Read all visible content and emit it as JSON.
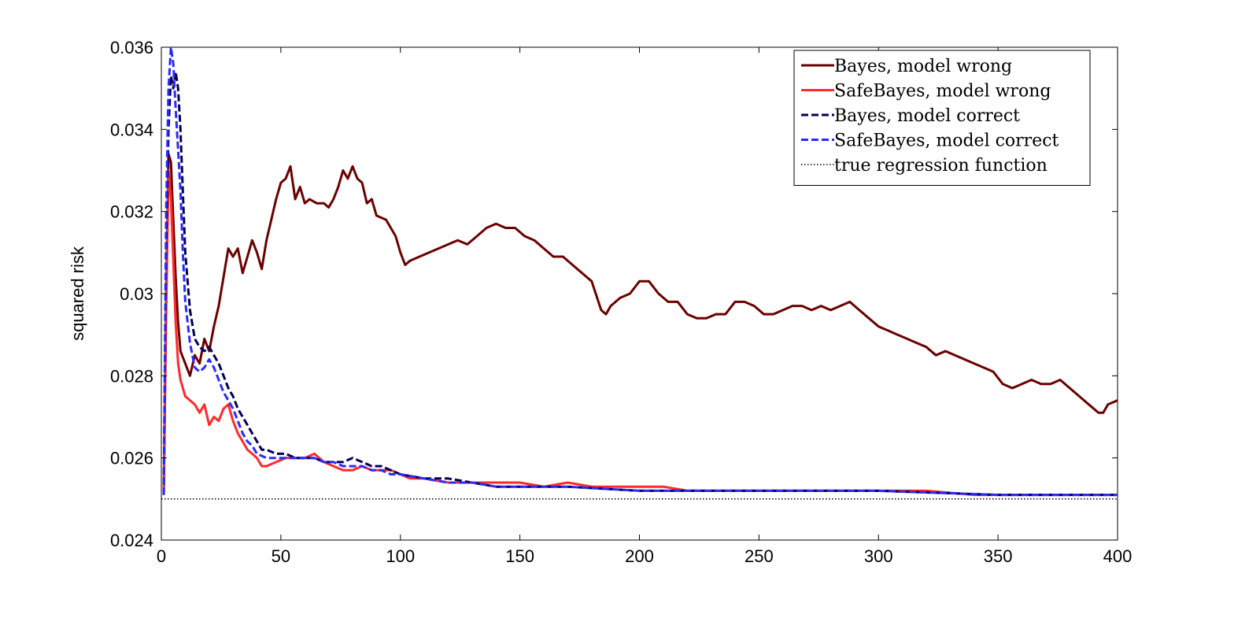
{
  "chart_data": {
    "type": "line",
    "title": "",
    "xlabel": "",
    "ylabel": "squared risk",
    "xlim": [
      0,
      400
    ],
    "ylim": [
      0.024,
      0.036
    ],
    "x_ticks": [
      0,
      50,
      100,
      150,
      200,
      250,
      300,
      350,
      400
    ],
    "x_tick_labels": [
      "0",
      "50",
      "100",
      "150",
      "200",
      "250",
      "300",
      "350",
      "400"
    ],
    "y_ticks": [
      0.024,
      0.026,
      0.028,
      0.03,
      0.032,
      0.034,
      0.036
    ],
    "y_tick_labels": [
      "0.024",
      "0.026",
      "0.028",
      "0.03",
      "0.032",
      "0.034",
      "0.036"
    ],
    "grid": false,
    "legend_position": "top-right",
    "series": [
      {
        "name": "Bayes, model wrong",
        "color": "#6b0000",
        "style": "solid",
        "points": [
          [
            1,
            0.0251
          ],
          [
            2,
            0.03
          ],
          [
            3,
            0.0334
          ],
          [
            4,
            0.0332
          ],
          [
            5,
            0.0318
          ],
          [
            6,
            0.0304
          ],
          [
            7,
            0.0293
          ],
          [
            8,
            0.0286
          ],
          [
            10,
            0.0283
          ],
          [
            12,
            0.028
          ],
          [
            14,
            0.0285
          ],
          [
            16,
            0.0283
          ],
          [
            18,
            0.0289
          ],
          [
            20,
            0.0286
          ],
          [
            22,
            0.0292
          ],
          [
            24,
            0.0297
          ],
          [
            26,
            0.0304
          ],
          [
            28,
            0.0311
          ],
          [
            30,
            0.0309
          ],
          [
            32,
            0.0311
          ],
          [
            34,
            0.0305
          ],
          [
            36,
            0.0309
          ],
          [
            38,
            0.0313
          ],
          [
            40,
            0.031
          ],
          [
            42,
            0.0306
          ],
          [
            44,
            0.0313
          ],
          [
            46,
            0.0318
          ],
          [
            48,
            0.0323
          ],
          [
            50,
            0.0327
          ],
          [
            52,
            0.0328
          ],
          [
            54,
            0.0331
          ],
          [
            56,
            0.0323
          ],
          [
            58,
            0.0326
          ],
          [
            60,
            0.0322
          ],
          [
            62,
            0.0323
          ],
          [
            65,
            0.0322
          ],
          [
            68,
            0.0322
          ],
          [
            70,
            0.0321
          ],
          [
            72,
            0.0323
          ],
          [
            74,
            0.0326
          ],
          [
            76,
            0.033
          ],
          [
            78,
            0.0328
          ],
          [
            80,
            0.0331
          ],
          [
            82,
            0.0328
          ],
          [
            84,
            0.0327
          ],
          [
            86,
            0.0322
          ],
          [
            88,
            0.0323
          ],
          [
            90,
            0.0319
          ],
          [
            94,
            0.0318
          ],
          [
            98,
            0.0314
          ],
          [
            100,
            0.031
          ],
          [
            102,
            0.0307
          ],
          [
            104,
            0.0308
          ],
          [
            108,
            0.0309
          ],
          [
            112,
            0.031
          ],
          [
            116,
            0.0311
          ],
          [
            120,
            0.0312
          ],
          [
            124,
            0.0313
          ],
          [
            128,
            0.0312
          ],
          [
            132,
            0.0314
          ],
          [
            136,
            0.0316
          ],
          [
            140,
            0.0317
          ],
          [
            144,
            0.0316
          ],
          [
            148,
            0.0316
          ],
          [
            152,
            0.0314
          ],
          [
            156,
            0.0313
          ],
          [
            160,
            0.0311
          ],
          [
            164,
            0.0309
          ],
          [
            168,
            0.0309
          ],
          [
            172,
            0.0307
          ],
          [
            176,
            0.0305
          ],
          [
            180,
            0.0303
          ],
          [
            184,
            0.0296
          ],
          [
            186,
            0.0295
          ],
          [
            188,
            0.0297
          ],
          [
            192,
            0.0299
          ],
          [
            196,
            0.03
          ],
          [
            200,
            0.0303
          ],
          [
            204,
            0.0303
          ],
          [
            208,
            0.03
          ],
          [
            212,
            0.0298
          ],
          [
            216,
            0.0298
          ],
          [
            220,
            0.0295
          ],
          [
            224,
            0.0294
          ],
          [
            228,
            0.0294
          ],
          [
            232,
            0.0295
          ],
          [
            236,
            0.0295
          ],
          [
            240,
            0.0298
          ],
          [
            244,
            0.0298
          ],
          [
            248,
            0.0297
          ],
          [
            252,
            0.0295
          ],
          [
            256,
            0.0295
          ],
          [
            260,
            0.0296
          ],
          [
            264,
            0.0297
          ],
          [
            268,
            0.0297
          ],
          [
            272,
            0.0296
          ],
          [
            276,
            0.0297
          ],
          [
            280,
            0.0296
          ],
          [
            284,
            0.0297
          ],
          [
            288,
            0.0298
          ],
          [
            292,
            0.0296
          ],
          [
            296,
            0.0294
          ],
          [
            300,
            0.0292
          ],
          [
            304,
            0.0291
          ],
          [
            308,
            0.029
          ],
          [
            312,
            0.0289
          ],
          [
            316,
            0.0288
          ],
          [
            320,
            0.0287
          ],
          [
            324,
            0.0285
          ],
          [
            328,
            0.0286
          ],
          [
            332,
            0.0285
          ],
          [
            336,
            0.0284
          ],
          [
            340,
            0.0283
          ],
          [
            344,
            0.0282
          ],
          [
            348,
            0.0281
          ],
          [
            352,
            0.0278
          ],
          [
            356,
            0.0277
          ],
          [
            360,
            0.0278
          ],
          [
            364,
            0.0279
          ],
          [
            368,
            0.0278
          ],
          [
            372,
            0.0278
          ],
          [
            376,
            0.0279
          ],
          [
            380,
            0.0277
          ],
          [
            384,
            0.0275
          ],
          [
            388,
            0.0273
          ],
          [
            392,
            0.0271
          ],
          [
            394,
            0.0271
          ],
          [
            396,
            0.0273
          ],
          [
            400,
            0.0274
          ]
        ]
      },
      {
        "name": "SafeBayes, model wrong",
        "color": "#ff2a2a",
        "style": "solid",
        "points": [
          [
            1,
            0.0251
          ],
          [
            2,
            0.0295
          ],
          [
            3,
            0.033
          ],
          [
            4,
            0.0323
          ],
          [
            5,
            0.0308
          ],
          [
            6,
            0.0293
          ],
          [
            7,
            0.0283
          ],
          [
            8,
            0.0279
          ],
          [
            10,
            0.0275
          ],
          [
            12,
            0.0274
          ],
          [
            14,
            0.0273
          ],
          [
            16,
            0.0271
          ],
          [
            18,
            0.0273
          ],
          [
            20,
            0.0268
          ],
          [
            22,
            0.027
          ],
          [
            24,
            0.0269
          ],
          [
            26,
            0.0272
          ],
          [
            28,
            0.0273
          ],
          [
            30,
            0.0269
          ],
          [
            32,
            0.0266
          ],
          [
            34,
            0.0264
          ],
          [
            36,
            0.0262
          ],
          [
            38,
            0.0261
          ],
          [
            40,
            0.026
          ],
          [
            42,
            0.0258
          ],
          [
            44,
            0.0258
          ],
          [
            48,
            0.0259
          ],
          [
            52,
            0.026
          ],
          [
            56,
            0.026
          ],
          [
            60,
            0.026
          ],
          [
            64,
            0.0261
          ],
          [
            68,
            0.0259
          ],
          [
            72,
            0.0258
          ],
          [
            76,
            0.0257
          ],
          [
            80,
            0.0257
          ],
          [
            84,
            0.0258
          ],
          [
            88,
            0.0257
          ],
          [
            92,
            0.0257
          ],
          [
            96,
            0.0257
          ],
          [
            100,
            0.0256
          ],
          [
            104,
            0.0255
          ],
          [
            110,
            0.0255
          ],
          [
            120,
            0.0254
          ],
          [
            130,
            0.0254
          ],
          [
            140,
            0.0254
          ],
          [
            150,
            0.0254
          ],
          [
            160,
            0.0253
          ],
          [
            170,
            0.0254
          ],
          [
            180,
            0.0253
          ],
          [
            190,
            0.0253
          ],
          [
            200,
            0.0253
          ],
          [
            210,
            0.0253
          ],
          [
            220,
            0.0252
          ],
          [
            240,
            0.0252
          ],
          [
            260,
            0.0252
          ],
          [
            280,
            0.0252
          ],
          [
            300,
            0.0252
          ],
          [
            320,
            0.0252
          ],
          [
            340,
            0.0251
          ],
          [
            360,
            0.0251
          ],
          [
            380,
            0.0251
          ],
          [
            400,
            0.0251
          ]
        ]
      },
      {
        "name": "Bayes, model correct",
        "color": "#00005a",
        "style": "dashed",
        "points": [
          [
            1,
            0.0251
          ],
          [
            2,
            0.031
          ],
          [
            3,
            0.034
          ],
          [
            4,
            0.0353
          ],
          [
            5,
            0.035
          ],
          [
            6,
            0.0354
          ],
          [
            7,
            0.035
          ],
          [
            8,
            0.034
          ],
          [
            9,
            0.0325
          ],
          [
            10,
            0.031
          ],
          [
            12,
            0.0296
          ],
          [
            14,
            0.0289
          ],
          [
            16,
            0.0287
          ],
          [
            18,
            0.0286
          ],
          [
            20,
            0.0287
          ],
          [
            22,
            0.0285
          ],
          [
            24,
            0.0283
          ],
          [
            26,
            0.028
          ],
          [
            28,
            0.0277
          ],
          [
            30,
            0.0275
          ],
          [
            32,
            0.0272
          ],
          [
            34,
            0.027
          ],
          [
            36,
            0.0268
          ],
          [
            38,
            0.0266
          ],
          [
            40,
            0.0264
          ],
          [
            42,
            0.0262
          ],
          [
            44,
            0.0262
          ],
          [
            48,
            0.0261
          ],
          [
            52,
            0.0261
          ],
          [
            56,
            0.026
          ],
          [
            60,
            0.026
          ],
          [
            64,
            0.026
          ],
          [
            68,
            0.0259
          ],
          [
            72,
            0.0259
          ],
          [
            76,
            0.0259
          ],
          [
            80,
            0.026
          ],
          [
            84,
            0.0259
          ],
          [
            88,
            0.0258
          ],
          [
            92,
            0.0258
          ],
          [
            96,
            0.0257
          ],
          [
            100,
            0.0256
          ],
          [
            110,
            0.0255
          ],
          [
            120,
            0.0255
          ],
          [
            130,
            0.0254
          ],
          [
            140,
            0.0253
          ],
          [
            150,
            0.0253
          ],
          [
            170,
            0.0253
          ],
          [
            200,
            0.0252
          ],
          [
            250,
            0.0252
          ],
          [
            300,
            0.0252
          ],
          [
            350,
            0.0251
          ],
          [
            400,
            0.0251
          ]
        ]
      },
      {
        "name": "SafeBayes, model correct",
        "color": "#2a2aff",
        "style": "dashed",
        "points": [
          [
            1,
            0.0251
          ],
          [
            2,
            0.032
          ],
          [
            3,
            0.035
          ],
          [
            4,
            0.036
          ],
          [
            5,
            0.0356
          ],
          [
            6,
            0.0345
          ],
          [
            7,
            0.0335
          ],
          [
            8,
            0.0325
          ],
          [
            9,
            0.031
          ],
          [
            10,
            0.0298
          ],
          [
            12,
            0.0288
          ],
          [
            14,
            0.0282
          ],
          [
            16,
            0.0281
          ],
          [
            18,
            0.0282
          ],
          [
            20,
            0.0284
          ],
          [
            22,
            0.0282
          ],
          [
            24,
            0.0279
          ],
          [
            26,
            0.0276
          ],
          [
            28,
            0.0274
          ],
          [
            30,
            0.0272
          ],
          [
            32,
            0.0269
          ],
          [
            34,
            0.0266
          ],
          [
            36,
            0.0264
          ],
          [
            38,
            0.0263
          ],
          [
            40,
            0.0261
          ],
          [
            44,
            0.026
          ],
          [
            48,
            0.026
          ],
          [
            52,
            0.026
          ],
          [
            56,
            0.026
          ],
          [
            60,
            0.026
          ],
          [
            64,
            0.026
          ],
          [
            68,
            0.0259
          ],
          [
            72,
            0.0259
          ],
          [
            76,
            0.0258
          ],
          [
            80,
            0.0258
          ],
          [
            84,
            0.0258
          ],
          [
            88,
            0.0257
          ],
          [
            92,
            0.0257
          ],
          [
            96,
            0.0256
          ],
          [
            100,
            0.0256
          ],
          [
            110,
            0.0255
          ],
          [
            120,
            0.0254
          ],
          [
            130,
            0.0254
          ],
          [
            140,
            0.0253
          ],
          [
            150,
            0.0253
          ],
          [
            170,
            0.0253
          ],
          [
            200,
            0.0252
          ],
          [
            250,
            0.0252
          ],
          [
            300,
            0.0252
          ],
          [
            350,
            0.0251
          ],
          [
            400,
            0.0251
          ]
        ]
      },
      {
        "name": "true regression function",
        "color": "#000000",
        "style": "dotted",
        "points": [
          [
            0,
            0.025
          ],
          [
            400,
            0.025
          ]
        ]
      }
    ]
  }
}
